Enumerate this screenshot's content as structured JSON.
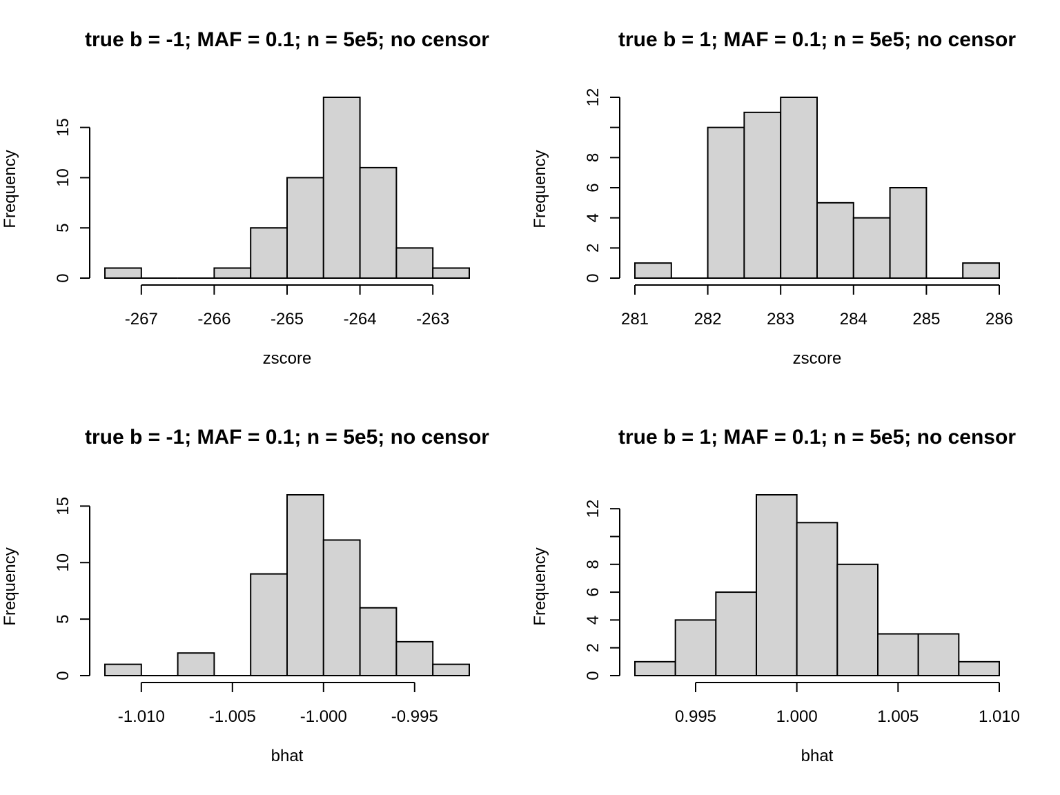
{
  "chart_data": [
    {
      "type": "bar",
      "title": "true b = -1; MAF = 0.1; n = 5e5; no censor",
      "xlabel": "zscore",
      "ylabel": "Frequency",
      "bin_edges": [
        -267.5,
        -267,
        -266.5,
        -266,
        -265.5,
        -265,
        -264.5,
        -264,
        -263.5,
        -263,
        -262.5
      ],
      "values": [
        1,
        0,
        0,
        1,
        5,
        10,
        18,
        11,
        3,
        1
      ],
      "xlim": [
        -267.5,
        -262.5
      ],
      "ylim": [
        0,
        18
      ],
      "xticks": [
        -267,
        -266,
        -265,
        -264,
        -263
      ],
      "xtick_labels": [
        "-267",
        "-266",
        "-265",
        "-264",
        "-263"
      ],
      "yticks": [
        0,
        5,
        10,
        15
      ],
      "ytick_labels": [
        "0",
        "5",
        "10",
        "15"
      ]
    },
    {
      "type": "bar",
      "title": "true b = 1; MAF = 0.1; n = 5e5; no censor",
      "xlabel": "zscore",
      "ylabel": "Frequency",
      "bin_edges": [
        281,
        281.5,
        282,
        282.5,
        283,
        283.5,
        284,
        284.5,
        285,
        285.5,
        286
      ],
      "values": [
        1,
        0,
        10,
        11,
        12,
        5,
        4,
        6,
        0,
        1
      ],
      "xlim": [
        281,
        286
      ],
      "ylim": [
        0,
        12
      ],
      "xticks": [
        281,
        282,
        283,
        284,
        285,
        286
      ],
      "xtick_labels": [
        "281",
        "282",
        "283",
        "284",
        "285",
        "286"
      ],
      "yticks": [
        0,
        2,
        4,
        6,
        8,
        10,
        12
      ],
      "ytick_labels": [
        "0",
        "2",
        "4",
        "6",
        "8",
        "",
        "12"
      ]
    },
    {
      "type": "bar",
      "title": "true b = -1; MAF = 0.1; n = 5e5; no censor",
      "xlabel": "bhat",
      "ylabel": "Frequency",
      "bin_edges": [
        -1.012,
        -1.01,
        -1.008,
        -1.006,
        -1.004,
        -1.002,
        -1.0,
        -0.998,
        -0.996,
        -0.994,
        -0.992
      ],
      "values": [
        1,
        0,
        2,
        0,
        9,
        16,
        12,
        6,
        3,
        1
      ],
      "xlim": [
        -1.012,
        -0.992
      ],
      "ylim": [
        0,
        16
      ],
      "xticks": [
        -1.01,
        -1.005,
        -1.0,
        -0.995
      ],
      "xtick_labels": [
        "-1.010",
        "-1.005",
        "-1.000",
        "-0.995"
      ],
      "yticks": [
        0,
        5,
        10,
        15
      ],
      "ytick_labels": [
        "0",
        "5",
        "10",
        "15"
      ]
    },
    {
      "type": "bar",
      "title": "true b = 1; MAF = 0.1; n = 5e5; no censor",
      "xlabel": "bhat",
      "ylabel": "Frequency",
      "bin_edges": [
        0.992,
        0.994,
        0.996,
        0.998,
        1.0,
        1.002,
        1.004,
        1.006,
        1.008,
        1.01
      ],
      "values": [
        1,
        4,
        6,
        13,
        11,
        8,
        3,
        3,
        1
      ],
      "xlim": [
        0.992,
        1.01
      ],
      "ylim": [
        0,
        13
      ],
      "xticks": [
        0.995,
        1.0,
        1.005,
        1.01
      ],
      "xtick_labels": [
        "0.995",
        "1.000",
        "1.005",
        "1.010"
      ],
      "yticks": [
        0,
        2,
        4,
        6,
        8,
        10,
        12
      ],
      "ytick_labels": [
        "0",
        "2",
        "4",
        "6",
        "8",
        "",
        "12"
      ]
    }
  ]
}
